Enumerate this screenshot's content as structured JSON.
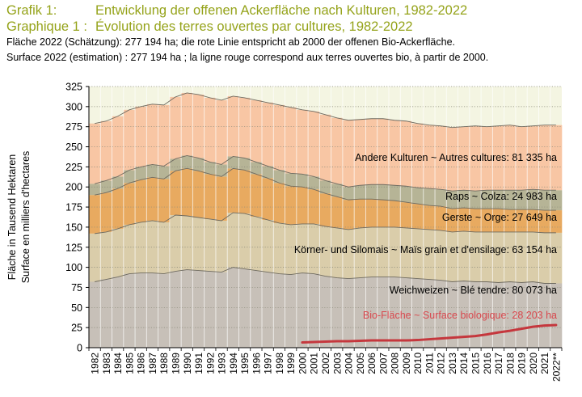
{
  "header": {
    "grafik_label": "Grafik 1:",
    "grafik_title": "Entwicklung der offenen Ackerfläche nach Kulturen, 1982-2022",
    "graphique_label": "Graphique 1 :",
    "graphique_title": "Évolution des terres ouvertes par cultures, 1982-2022",
    "note_de": "Fläche 2022 (Schätzung): 277 194 ha; die rote Linie entspricht ab 2000 der offenen Bio-Ackerfläche.",
    "note_fr": "Surface 2022 (estimation) : 277 194 ha ; la ligne rouge correspond aux terres ouvertes bio, à partir de 2000."
  },
  "colors": {
    "weichweizen": "#c7c0b8",
    "koernermais": "#dacdaa",
    "gerste": "#e8aa60",
    "raps": "#b6b496",
    "andere": "#f8c6a4",
    "top": "#f4f5e2",
    "bio_line": "#c5373d",
    "header_text": "#95a31a",
    "bio_text": "#d9484e"
  },
  "chart_data": {
    "type": "area",
    "stacked": true,
    "ylabel_de": "Fläche in Tausend Hektaren",
    "ylabel_fr": "Surface en milliers d'hectares",
    "ylim": [
      0,
      325
    ],
    "yticks": [
      0,
      25,
      50,
      75,
      100,
      125,
      150,
      175,
      200,
      225,
      250,
      275,
      300,
      325
    ],
    "grid": "dotted horizontal",
    "x": [
      "1982",
      "1983",
      "1984",
      "1985",
      "1986",
      "1987",
      "1988",
      "1989",
      "1990",
      "1991",
      "1992",
      "1993",
      "1994",
      "1995",
      "1996",
      "1997",
      "1998",
      "1999",
      "2000",
      "2001",
      "2002",
      "2003",
      "2004",
      "2005",
      "2006",
      "2007",
      "2008",
      "2009",
      "2010",
      "2011",
      "2012",
      "2013",
      "2014",
      "2015",
      "2016",
      "2017",
      "2018",
      "2019",
      "2020",
      "2021",
      "2022**"
    ],
    "series": [
      {
        "name": "Weichweizen ~ Blé tendre: 80 073 ha",
        "label_de": "Weichweizen",
        "label_fr": "Blé tendre: 80 073 ha",
        "values": [
          82,
          85,
          88,
          92,
          93,
          93,
          92,
          95,
          97,
          96,
          95,
          94,
          100,
          98,
          96,
          94,
          92,
          91,
          93,
          92,
          89,
          87,
          86,
          87,
          88,
          88,
          88,
          87,
          86,
          85,
          84,
          82,
          83,
          82,
          82,
          81,
          82,
          81,
          82,
          80,
          80
        ]
      },
      {
        "name": "Körner- und Silomais ~ Maïs grain et d'ensilage: 63 154 ha",
        "label_de": "Körner- und Silomais",
        "label_fr": "Maïs grain et d'ensilage: 63 154 ha",
        "values": [
          60,
          59,
          60,
          61,
          63,
          65,
          64,
          70,
          67,
          66,
          65,
          64,
          68,
          69,
          67,
          65,
          63,
          62,
          61,
          62,
          62,
          62,
          61,
          62,
          62,
          62,
          62,
          62,
          62,
          62,
          62,
          62,
          62,
          62,
          62,
          63,
          62,
          63,
          62,
          63,
          63
        ]
      },
      {
        "name": "Gerste ~ Orge: 27 649 ha",
        "label_de": "Gerste",
        "label_fr": "Orge: 27 649 ha",
        "values": [
          48,
          49,
          50,
          52,
          53,
          54,
          54,
          55,
          59,
          58,
          56,
          55,
          55,
          54,
          53,
          52,
          50,
          48,
          46,
          43,
          41,
          39,
          37,
          36,
          35,
          34,
          33,
          32,
          31,
          30,
          30,
          29,
          29,
          29,
          29,
          29,
          28,
          28,
          28,
          28,
          28
        ]
      },
      {
        "name": "Raps ~ Colza: 24 983 ha",
        "label_de": "Raps",
        "label_fr": "Colza: 24 983 ha",
        "values": [
          14,
          15,
          15,
          16,
          16,
          16,
          16,
          15,
          16,
          16,
          15,
          15,
          15,
          15,
          15,
          15,
          16,
          16,
          16,
          16,
          16,
          16,
          16,
          17,
          18,
          19,
          19,
          20,
          20,
          21,
          21,
          22,
          22,
          22,
          23,
          23,
          24,
          24,
          25,
          25,
          25
        ]
      },
      {
        "name": "Andere Kulturen ~ Autres cultures: 81 335 ha",
        "label_de": "Andere Kulturen",
        "label_fr": "Autres cultures: 81 335 ha",
        "values": [
          75,
          74,
          75,
          75,
          75,
          75,
          76,
          77,
          78,
          79,
          80,
          80,
          75,
          75,
          77,
          79,
          81,
          82,
          80,
          81,
          82,
          82,
          83,
          82,
          82,
          82,
          81,
          81,
          80,
          79,
          79,
          79,
          79,
          81,
          79,
          80,
          81,
          79,
          79,
          81,
          81
        ]
      }
    ],
    "bio_line": {
      "name": "Bio-Fläche ~ Surface biologique: 28 203 ha",
      "label_de": "Bio-Fläche",
      "label_fr": "Surface biologique: 28 203 ha",
      "x": [
        "2000",
        "2001",
        "2002",
        "2003",
        "2004",
        "2005",
        "2006",
        "2007",
        "2008",
        "2009",
        "2010",
        "2011",
        "2012",
        "2013",
        "2014",
        "2015",
        "2016",
        "2017",
        "2018",
        "2019",
        "2020",
        "2021",
        "2022**"
      ],
      "values": [
        6.5,
        7,
        7.5,
        8,
        8,
        8.5,
        9,
        9,
        9,
        9,
        9.5,
        10.5,
        11.5,
        12.5,
        13.5,
        14.5,
        16.5,
        19,
        21,
        23.5,
        26,
        27.5,
        28.2
      ]
    },
    "tilde": "~"
  }
}
